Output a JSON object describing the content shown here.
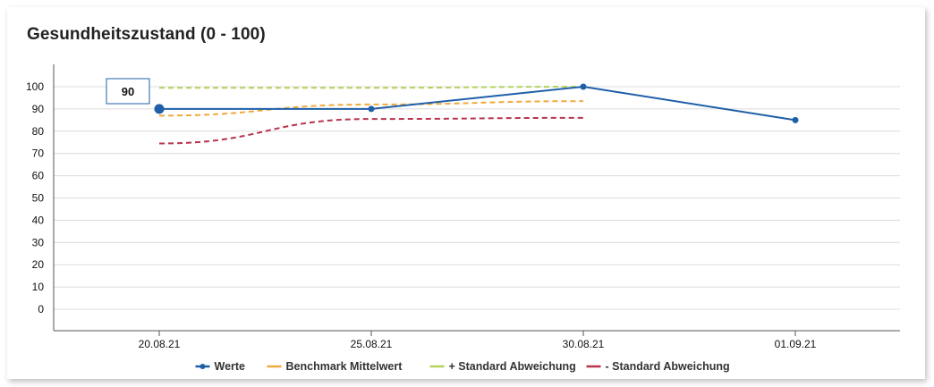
{
  "chart_data": {
    "type": "line",
    "title": "Gesundheitszustand (0 - 100)",
    "categories": [
      "20.08.21",
      "25.08.21",
      "30.08.21",
      "01.09.21"
    ],
    "yticks": [
      0,
      10,
      20,
      30,
      40,
      50,
      60,
      70,
      80,
      90,
      100
    ],
    "ylim": [
      -10,
      110
    ],
    "grid": true,
    "legend_position": "bottom",
    "series": [
      {
        "name": "Werte",
        "values": [
          90,
          90,
          100,
          85
        ],
        "color": "#1f5fa8",
        "style": "solid",
        "markers": true
      },
      {
        "name": "Benchmark Mittelwert",
        "values": [
          87,
          92,
          93.5,
          null
        ],
        "color": "#f2a93b",
        "style": "dashed",
        "markers": false
      },
      {
        "name": "+ Standard Abweichung",
        "values": [
          99.5,
          99.5,
          100,
          null
        ],
        "color": "#b5d35a",
        "style": "dashed",
        "markers": false
      },
      {
        "name": "- Standard Abweichung",
        "values": [
          74.5,
          85.5,
          86,
          null
        ],
        "color": "#b8334f",
        "style": "dashed",
        "markers": false
      }
    ],
    "tooltip": {
      "category_index": 0,
      "series_index": 0,
      "label": "90"
    }
  }
}
